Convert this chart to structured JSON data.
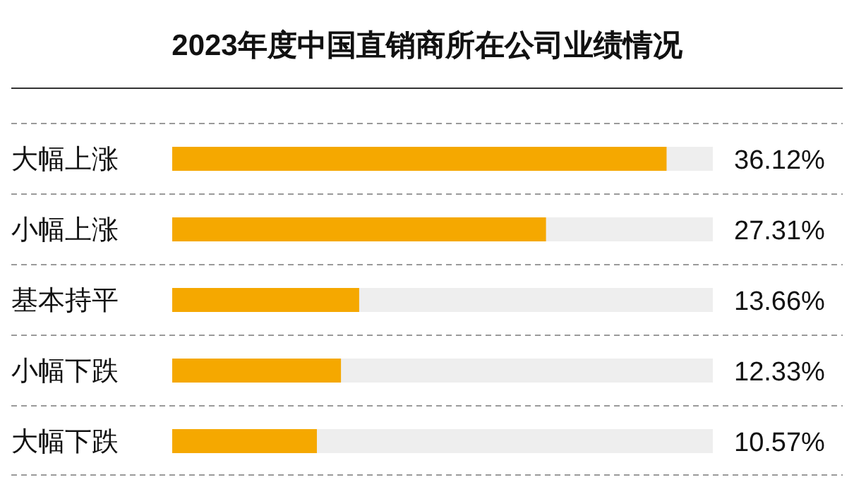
{
  "chart_data": {
    "type": "bar",
    "orientation": "horizontal",
    "title": "2023年度中国直销商所在公司业绩情况",
    "categories": [
      "大幅上涨",
      "小幅上涨",
      "基本持平",
      "小幅下跌",
      "大幅下跌"
    ],
    "values": [
      36.12,
      27.31,
      13.66,
      12.33,
      10.57
    ],
    "color": "#f5a800",
    "value_labels": [
      "36.12%",
      "27.31%",
      "13.66%",
      "12.33%",
      "10.57%"
    ],
    "xlim": [
      0,
      39.5
    ],
    "tick_labels": "y",
    "grid": "y"
  }
}
